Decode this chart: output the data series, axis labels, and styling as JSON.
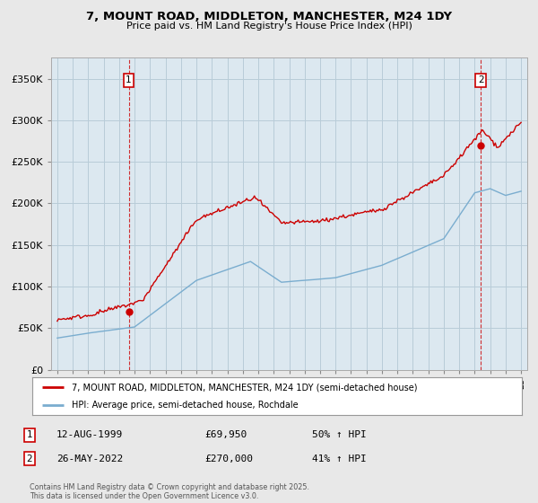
{
  "title": "7, MOUNT ROAD, MIDDLETON, MANCHESTER, M24 1DY",
  "subtitle": "Price paid vs. HM Land Registry's House Price Index (HPI)",
  "red_label": "7, MOUNT ROAD, MIDDLETON, MANCHESTER, M24 1DY (semi-detached house)",
  "blue_label": "HPI: Average price, semi-detached house, Rochdale",
  "annotation1_date": "12-AUG-1999",
  "annotation1_price": "£69,950",
  "annotation1_hpi": "50% ↑ HPI",
  "annotation2_date": "26-MAY-2022",
  "annotation2_price": "£270,000",
  "annotation2_hpi": "41% ↑ HPI",
  "footer": "Contains HM Land Registry data © Crown copyright and database right 2025.\nThis data is licensed under the Open Government Licence v3.0.",
  "red_color": "#cc0000",
  "blue_color": "#7aadcf",
  "background_color": "#e8e8e8",
  "plot_background": "#dce8f0",
  "grid_color": "#b8ccd8",
  "ylim": [
    0,
    375000
  ],
  "yticks": [
    0,
    50000,
    100000,
    150000,
    200000,
    250000,
    300000,
    350000
  ],
  "sale1_x": 1999.62,
  "sale1_y": 69950,
  "sale2_x": 2022.4,
  "sale2_y": 270000,
  "xlim_left": 1994.6,
  "xlim_right": 2025.4
}
